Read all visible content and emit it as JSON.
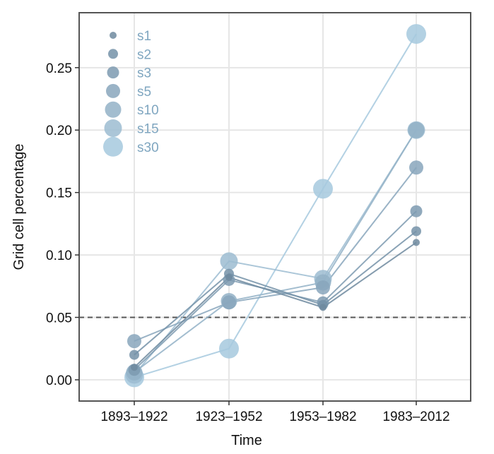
{
  "chart_data": {
    "type": "scatter",
    "xlabel": "Time",
    "ylabel": "Grid cell percentage",
    "categories": [
      "1893–1922",
      "1923–1952",
      "1953–1982",
      "1983–2012"
    ],
    "y_ticks": [
      "0.00",
      "0.05",
      "0.10",
      "0.15",
      "0.20",
      "0.25"
    ],
    "ylim": [
      -0.017,
      0.294
    ],
    "reference_line": {
      "y": 0.05,
      "style": "dashed"
    },
    "grid": true,
    "legend_position": "top-left",
    "series": [
      {
        "name": "s1",
        "values": [
          0.01,
          0.082,
          0.058,
          0.11
        ]
      },
      {
        "name": "s2",
        "values": [
          0.02,
          0.085,
          0.06,
          0.119
        ]
      },
      {
        "name": "s3",
        "values": [
          0.008,
          0.08,
          0.062,
          0.135
        ]
      },
      {
        "name": "s5",
        "values": [
          0.031,
          0.062,
          0.074,
          0.17
        ]
      },
      {
        "name": "s10",
        "values": [
          0.006,
          0.063,
          0.078,
          0.2
        ]
      },
      {
        "name": "s15",
        "values": [
          0.004,
          0.095,
          0.081,
          0.2
        ]
      },
      {
        "name": "s30",
        "values": [
          0.002,
          0.025,
          0.153,
          0.277
        ]
      }
    ],
    "colors": {
      "s1": "#6f8a9f",
      "s2": "#7492a8",
      "s3": "#7d9ab0",
      "s5": "#88a6bc",
      "s10": "#93b2c7",
      "s15": "#9cbcd1",
      "s30": "#a6c9de",
      "legend_text": "#7fa6c0",
      "grid": "#e6e6e6",
      "frame": "#555555",
      "ref_line": "#555555"
    }
  }
}
